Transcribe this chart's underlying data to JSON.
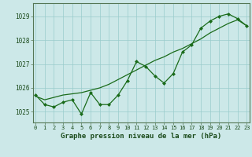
{
  "x": [
    0,
    1,
    2,
    3,
    4,
    5,
    6,
    7,
    8,
    9,
    10,
    11,
    12,
    13,
    14,
    15,
    16,
    17,
    18,
    19,
    20,
    21,
    22,
    23
  ],
  "y_line": [
    1025.7,
    1025.3,
    1025.2,
    1025.4,
    1025.5,
    1024.9,
    1025.8,
    1025.3,
    1025.3,
    1025.7,
    1026.3,
    1027.1,
    1026.9,
    1026.5,
    1026.2,
    1026.6,
    1027.5,
    1027.8,
    1028.5,
    1028.8,
    1029.0,
    1029.1,
    1028.9,
    1028.6
  ],
  "y_smooth": [
    1025.65,
    1025.5,
    1025.6,
    1025.7,
    1025.75,
    1025.8,
    1025.9,
    1026.0,
    1026.15,
    1026.35,
    1026.55,
    1026.75,
    1026.95,
    1027.15,
    1027.3,
    1027.5,
    1027.65,
    1027.85,
    1028.05,
    1028.3,
    1028.5,
    1028.7,
    1028.85,
    1028.6
  ],
  "line_color": "#1a6b1a",
  "bg_color": "#cce8e8",
  "grid_color": "#99cccc",
  "title": "Graphe pression niveau de la mer (hPa)",
  "xlabel_ticks": [
    "0",
    "1",
    "2",
    "3",
    "4",
    "5",
    "6",
    "7",
    "8",
    "9",
    "10",
    "11",
    "12",
    "13",
    "14",
    "15",
    "16",
    "17",
    "18",
    "19",
    "20",
    "21",
    "22",
    "23"
  ],
  "yticks": [
    1025,
    1026,
    1027,
    1028,
    1029
  ],
  "ylim": [
    1024.55,
    1029.55
  ],
  "xlim": [
    -0.3,
    23.3
  ]
}
